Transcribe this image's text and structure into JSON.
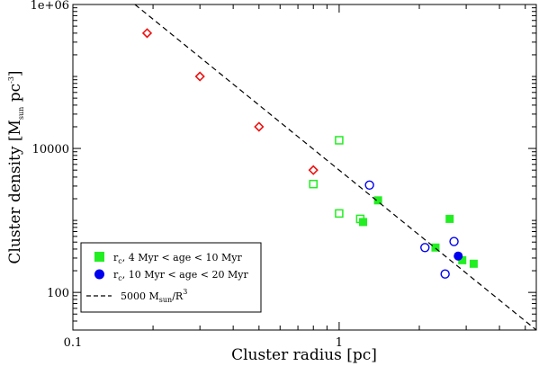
{
  "chart_data": {
    "type": "scatter",
    "xlabel": "Cluster radius [pc]",
    "ylabel_parts": {
      "main": "Cluster density [M",
      "sub": "sun",
      "mid": " pc",
      "sup": "-3",
      "end": "]"
    },
    "x_scale": "log",
    "y_scale": "log",
    "xlim": [
      0.1,
      5.5
    ],
    "ylim": [
      30,
      1000000
    ],
    "x_ticks": [
      {
        "value": 0.1,
        "label": "0.1"
      },
      {
        "value": 1,
        "label": "1"
      }
    ],
    "y_ticks": [
      {
        "value": 100,
        "label": "100"
      },
      {
        "value": 10000,
        "label": "10000"
      },
      {
        "value": 1000000,
        "label": "1e+06"
      }
    ],
    "grid": false,
    "legend_position": "bottom-left",
    "colors": {
      "green": "#22ee22",
      "blue": "#0000ee",
      "red": "#ee1111",
      "line": "#000000"
    },
    "series": [
      {
        "kind": "red-open-diamond",
        "x": [
          0.19,
          0.3,
          0.5,
          0.8
        ],
        "y": [
          400000,
          100000,
          20000,
          5000
        ]
      },
      {
        "kind": "green-open-square",
        "x": [
          0.8,
          1.0,
          1.0,
          1.2
        ],
        "y": [
          3200,
          13000,
          1250,
          1050
        ]
      },
      {
        "name_parts": {
          "pre": "r",
          "sub": "c",
          "post": ", 4 Myr < age < 10 Myr"
        },
        "kind": "green-filled-square",
        "x": [
          1.23,
          1.4,
          2.3,
          2.6,
          2.9,
          3.2
        ],
        "y": [
          950,
          1900,
          420,
          1050,
          280,
          250
        ]
      },
      {
        "kind": "blue-open-circle",
        "x": [
          1.3,
          2.1,
          2.7,
          2.5
        ],
        "y": [
          3100,
          420,
          510,
          180
        ]
      },
      {
        "name_parts": {
          "pre": "r",
          "sub": "c",
          "post": ", 10 Myr < age < 20 Myr"
        },
        "kind": "blue-filled-circle",
        "x": [
          2.8
        ],
        "y": [
          320
        ]
      },
      {
        "name_parts": {
          "pre": "5000 M",
          "sub": "sun",
          "post": "/R",
          "sup": "3"
        },
        "kind": "dashed-line",
        "formula_coeff": 5000,
        "formula_power": -3
      }
    ]
  }
}
